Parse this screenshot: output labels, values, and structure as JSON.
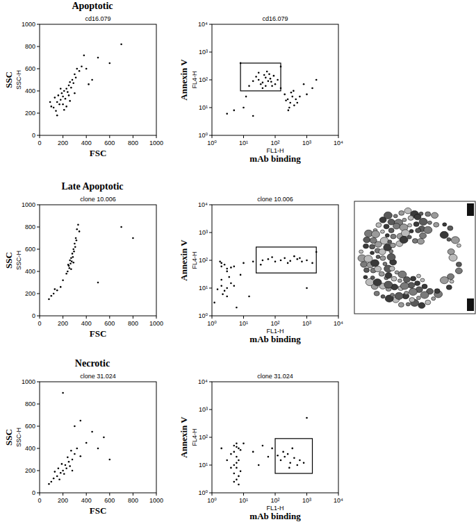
{
  "chart_data": [
    {
      "type": "scatter",
      "heading": "Apoptotic",
      "title": "cd16.079",
      "xlabel": "FSC",
      "ylabel": "SSC",
      "ylabel_channel": "SSC-H",
      "color": "#000000",
      "xlim": [
        0,
        1000
      ],
      "ylim": [
        0,
        1000
      ],
      "xticks": [
        0,
        200,
        400,
        600,
        800,
        1000
      ],
      "yticks": [
        0,
        200,
        400,
        600,
        800,
        1000
      ],
      "x": [
        120,
        150,
        180,
        200,
        210,
        230,
        250,
        260,
        280,
        300,
        320,
        170,
        190,
        220,
        240,
        140,
        100,
        130,
        160,
        270,
        290,
        310,
        340,
        360,
        200,
        230,
        250,
        180,
        150,
        90,
        400,
        450,
        500,
        600,
        700,
        380,
        420,
        300,
        260,
        210
      ],
      "values": [
        250,
        300,
        320,
        350,
        400,
        420,
        450,
        480,
        500,
        550,
        600,
        280,
        380,
        330,
        390,
        220,
        260,
        340,
        360,
        430,
        470,
        520,
        580,
        620,
        280,
        260,
        360,
        420,
        180,
        300,
        600,
        500,
        700,
        650,
        820,
        720,
        460,
        380,
        310,
        230
      ]
    },
    {
      "type": "scatter",
      "title": "cd16.079",
      "xlabel": "mAb binding",
      "xlabel_channel": "FL1-H",
      "ylabel": "Annexin V",
      "ylabel_channel": "FL4-H",
      "color": "#000000",
      "log": true,
      "xlim": [
        1,
        10000
      ],
      "ylim": [
        1,
        10000
      ],
      "xticks": [
        {
          "value": 1,
          "label": "10⁰"
        },
        {
          "value": 10,
          "label": "10¹"
        },
        {
          "value": 100,
          "label": "10²"
        },
        {
          "value": 1000,
          "label": "10³"
        },
        {
          "value": 10000,
          "label": "10⁴"
        }
      ],
      "yticks": [
        {
          "value": 1,
          "label": "10⁰"
        },
        {
          "value": 10,
          "label": "10¹"
        },
        {
          "value": 100,
          "label": "10²"
        },
        {
          "value": 1000,
          "label": "10³"
        },
        {
          "value": 10000,
          "label": "10⁴"
        }
      ],
      "gate": {
        "x": [
          8,
          150
        ],
        "y": [
          40,
          400
        ]
      },
      "x": [
        30,
        40,
        50,
        60,
        45,
        35,
        70,
        80,
        25,
        55,
        20,
        90,
        100,
        15,
        65,
        40,
        120,
        30,
        50,
        75,
        250,
        300,
        350,
        200,
        400,
        280,
        320,
        450,
        220,
        500,
        380,
        600,
        260,
        800,
        1500,
        2000,
        10,
        5,
        3,
        150,
        1000,
        12,
        8,
        150,
        20
      ],
      "values": [
        100,
        80,
        120,
        90,
        150,
        70,
        110,
        60,
        130,
        200,
        90,
        140,
        70,
        60,
        160,
        50,
        100,
        180,
        60,
        85,
        20,
        15,
        25,
        30,
        12,
        10,
        35,
        20,
        18,
        15,
        40,
        25,
        8,
        70,
        50,
        100,
        10,
        8,
        6,
        50,
        30,
        25,
        400,
        300,
        5
      ]
    },
    {
      "type": "scatter",
      "heading": "Late Apoptotic",
      "title": "clone 10.006",
      "xlabel": "FSC",
      "ylabel": "SSC",
      "ylabel_channel": "SSC-H",
      "color": "#000000",
      "xlim": [
        0,
        1000
      ],
      "ylim": [
        0,
        1000
      ],
      "xticks": [
        0,
        200,
        400,
        600,
        800,
        1000
      ],
      "yticks": [
        0,
        200,
        400,
        600,
        800,
        1000
      ],
      "x": [
        250,
        260,
        270,
        280,
        290,
        300,
        310,
        320,
        240,
        230,
        265,
        285,
        275,
        295,
        305,
        255,
        315,
        245,
        100,
        120,
        150,
        80,
        180,
        200,
        130,
        330,
        290,
        270,
        700,
        800,
        500,
        340
      ],
      "values": [
        450,
        500,
        520,
        560,
        600,
        650,
        700,
        780,
        400,
        380,
        470,
        530,
        490,
        580,
        620,
        430,
        680,
        460,
        180,
        200,
        230,
        150,
        260,
        320,
        240,
        820,
        480,
        420,
        800,
        700,
        300,
        760
      ]
    },
    {
      "type": "scatter",
      "title": "clone 10.006",
      "xlabel": "mAb binding",
      "xlabel_channel": "FL1-H",
      "ylabel": "Annexin V",
      "ylabel_channel": "FL4-H",
      "color": "#000000",
      "log": true,
      "xlim": [
        1,
        10000
      ],
      "ylim": [
        1,
        10000
      ],
      "xticks": [
        {
          "value": 1,
          "label": "10⁰"
        },
        {
          "value": 10,
          "label": "10¹"
        },
        {
          "value": 100,
          "label": "10²"
        },
        {
          "value": 1000,
          "label": "10³"
        },
        {
          "value": 10000,
          "label": "10⁴"
        }
      ],
      "yticks": [
        {
          "value": 1,
          "label": "10⁰"
        },
        {
          "value": 10,
          "label": "10¹"
        },
        {
          "value": 100,
          "label": "10²"
        },
        {
          "value": 1000,
          "label": "10³"
        },
        {
          "value": 10000,
          "label": "10⁴"
        }
      ],
      "gate": {
        "x": [
          25,
          2000
        ],
        "y": [
          35,
          300
        ]
      },
      "x": [
        2,
        3,
        2.5,
        4,
        2,
        3,
        1.8,
        5,
        2,
        3,
        2.5,
        4,
        2,
        3,
        2.2,
        5,
        1.5,
        3.5,
        10,
        20,
        40,
        60,
        100,
        150,
        200,
        300,
        500,
        700,
        1000,
        1500,
        80,
        250,
        400,
        35,
        600,
        8,
        15,
        1000,
        2000,
        6,
        1.2
      ],
      "values": [
        60,
        50,
        70,
        55,
        80,
        40,
        90,
        60,
        12,
        10,
        8,
        15,
        20,
        5,
        6,
        12,
        9,
        25,
        80,
        90,
        100,
        110,
        90,
        100,
        120,
        95,
        110,
        90,
        100,
        80,
        130,
        80,
        140,
        70,
        120,
        30,
        5,
        10,
        200,
        2,
        3
      ]
    },
    {
      "type": "scatter",
      "heading": "Necrotic",
      "title": "clone 31.024",
      "xlabel": "FSC",
      "ylabel": "SSC",
      "ylabel_channel": "SSC-H",
      "color": "#000000",
      "xlim": [
        0,
        1000
      ],
      "ylim": [
        0,
        1000
      ],
      "xticks": [
        0,
        200,
        400,
        600,
        800,
        1000
      ],
      "yticks": [
        0,
        200,
        400,
        600,
        800,
        1000
      ],
      "x": [
        200,
        220,
        180,
        250,
        150,
        280,
        230,
        300,
        160,
        120,
        100,
        210,
        260,
        240,
        190,
        320,
        350,
        130,
        280,
        170,
        400,
        450,
        500,
        300,
        350,
        200,
        600,
        550,
        80,
        270
      ],
      "values": [
        200,
        250,
        180,
        280,
        150,
        300,
        220,
        350,
        220,
        130,
        100,
        170,
        240,
        320,
        260,
        400,
        330,
        190,
        200,
        120,
        450,
        550,
        400,
        600,
        650,
        900,
        300,
        500,
        80,
        380
      ]
    },
    {
      "type": "scatter",
      "title": "clone 31.024",
      "xlabel": "mAb binding",
      "xlabel_channel": "FL1-H",
      "ylabel": "Annexin V",
      "ylabel_channel": "FL4-H",
      "color": "#000000",
      "log": true,
      "xlim": [
        1,
        10000
      ],
      "ylim": [
        1,
        10000
      ],
      "xticks": [
        {
          "value": 1,
          "label": "10⁰"
        },
        {
          "value": 10,
          "label": "10¹"
        },
        {
          "value": 100,
          "label": "10²"
        },
        {
          "value": 1000,
          "label": "10³"
        },
        {
          "value": 10000,
          "label": "10⁴"
        }
      ],
      "yticks": [
        {
          "value": 1,
          "label": "10⁰"
        },
        {
          "value": 10,
          "label": "10¹"
        },
        {
          "value": 100,
          "label": "10²"
        },
        {
          "value": 1000,
          "label": "10³"
        },
        {
          "value": 10000,
          "label": "10⁴"
        }
      ],
      "gate": {
        "x": [
          100,
          1500
        ],
        "y": [
          5,
          90
        ]
      },
      "x": [
        5,
        6,
        7,
        5,
        6,
        7,
        5,
        6,
        8,
        7,
        5,
        6,
        4,
        7,
        5,
        6,
        8,
        4,
        6,
        150,
        200,
        300,
        250,
        400,
        500,
        180,
        350,
        600,
        120,
        800,
        280,
        20,
        40,
        60,
        10,
        30,
        2,
        3,
        1000,
        80
      ],
      "values": [
        5,
        8,
        4,
        10,
        20,
        40,
        50,
        3,
        6,
        15,
        30,
        60,
        25,
        2,
        2.5,
        12,
        35,
        8,
        45,
        15,
        20,
        12,
        25,
        18,
        10,
        30,
        40,
        15,
        22,
        12,
        8,
        30,
        50,
        20,
        60,
        10,
        40,
        15,
        500,
        40
      ]
    }
  ]
}
